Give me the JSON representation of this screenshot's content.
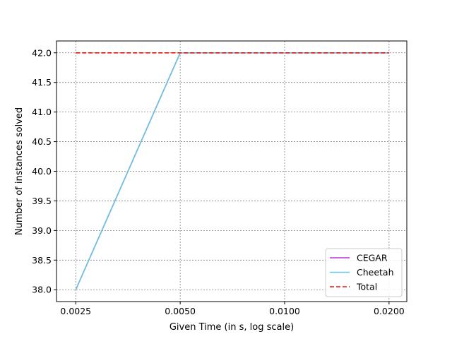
{
  "chart_data": {
    "type": "line",
    "xscale": "log",
    "xlabel": "Given Time (in s, log scale)",
    "ylabel": "Number of instances solved",
    "x_ticks": [
      0.0025,
      0.005,
      0.01,
      0.02
    ],
    "x_tick_labels": [
      "0.0025",
      "0.0050",
      "0.0100",
      "0.0200"
    ],
    "y_ticks": [
      38.0,
      38.5,
      39.0,
      39.5,
      40.0,
      40.5,
      41.0,
      41.5,
      42.0
    ],
    "y_tick_labels": [
      "38.0",
      "38.5",
      "39.0",
      "39.5",
      "40.0",
      "40.5",
      "41.0",
      "41.5",
      "42.0"
    ],
    "xlim": [
      0.0022,
      0.0225
    ],
    "ylim": [
      37.8,
      42.2
    ],
    "grid": true,
    "legend_position": "bottom-right",
    "series": [
      {
        "name": "CEGAR",
        "color": "#c030e0",
        "dashed": false,
        "x": [
          0.0025,
          0.005,
          0.01,
          0.02
        ],
        "y": [
          38,
          42,
          42,
          42
        ]
      },
      {
        "name": "Cheetah",
        "color": "#66c8e0",
        "dashed": false,
        "x": [
          0.0025,
          0.005,
          0.01,
          0.02
        ],
        "y": [
          38,
          42,
          42,
          42
        ]
      },
      {
        "name": "Total",
        "color": "#e8160c",
        "dashed": true,
        "x": [
          0.0025,
          0.005,
          0.01,
          0.02
        ],
        "y": [
          42,
          42,
          42,
          42
        ]
      }
    ]
  }
}
